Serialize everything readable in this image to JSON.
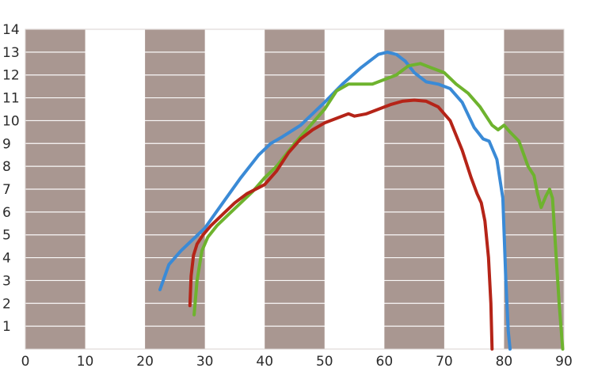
{
  "chart_data": {
    "type": "line",
    "title": "",
    "xlabel": "",
    "ylabel": "",
    "xlim": [
      0,
      90
    ],
    "ylim": [
      0,
      14
    ],
    "xticks": [
      0,
      10,
      20,
      30,
      40,
      50,
      60,
      70,
      80,
      90
    ],
    "yticks": [
      1,
      2,
      3,
      4,
      5,
      6,
      7,
      8,
      9,
      10,
      11,
      12,
      13,
      14
    ],
    "grid": true,
    "legend": "none",
    "band_color": "#a99791",
    "shaded_x_ranges": [
      [
        0,
        10
      ],
      [
        20,
        30
      ],
      [
        40,
        50
      ],
      [
        60,
        70
      ],
      [
        80,
        90
      ]
    ],
    "series": [
      {
        "color": "#3a8ad6",
        "x": [
          22.5,
          24,
          26,
          28,
          30,
          33,
          36,
          39,
          41,
          43,
          46,
          50,
          53,
          56,
          59,
          60.5,
          62,
          63.5,
          65,
          67,
          69,
          71,
          73,
          75,
          76.5,
          77.5,
          78.8,
          79.8,
          80.3,
          80.7,
          81
        ],
        "y": [
          2.6,
          3.7,
          4.3,
          4.8,
          5.3,
          6.4,
          7.5,
          8.5,
          9.0,
          9.3,
          9.8,
          10.8,
          11.6,
          12.3,
          12.9,
          13.0,
          12.9,
          12.6,
          12.1,
          11.7,
          11.6,
          11.4,
          10.8,
          9.7,
          9.2,
          9.1,
          8.3,
          6.6,
          3.0,
          0.8,
          0.0
        ]
      },
      {
        "color": "#6eb32e",
        "x": [
          28.2,
          28.7,
          29.5,
          30.5,
          32,
          34,
          36,
          38,
          40,
          42,
          45,
          48,
          50,
          52,
          54,
          56,
          58,
          60,
          62,
          64,
          66,
          68,
          70,
          72,
          74,
          76,
          78,
          79,
          80,
          81,
          82.5,
          84,
          85,
          85.6,
          86.2,
          87,
          87.6,
          88.1,
          88.6,
          89.2,
          89.8
        ],
        "y": [
          1.5,
          3.0,
          4.3,
          4.9,
          5.4,
          5.9,
          6.4,
          6.9,
          7.5,
          8.0,
          9.0,
          9.9,
          10.5,
          11.3,
          11.6,
          11.6,
          11.6,
          11.8,
          12.0,
          12.4,
          12.5,
          12.3,
          12.1,
          11.6,
          11.2,
          10.6,
          9.8,
          9.6,
          9.8,
          9.5,
          9.1,
          8.0,
          7.6,
          6.8,
          6.2,
          6.7,
          7.0,
          6.6,
          4.5,
          2.0,
          0.0
        ]
      },
      {
        "color": "#b52418",
        "x": [
          27.5,
          27.7,
          28.1,
          28.7,
          29.7,
          31,
          33,
          35,
          37,
          40,
          42,
          44,
          46,
          48,
          50,
          52,
          54,
          55,
          57,
          59,
          61,
          63,
          65,
          67,
          69,
          71,
          73,
          74.5,
          75.5,
          76.2,
          76.8,
          77.4,
          77.8,
          78
        ],
        "y": [
          1.9,
          3.2,
          4.1,
          4.6,
          5.0,
          5.4,
          5.9,
          6.4,
          6.8,
          7.2,
          7.8,
          8.6,
          9.2,
          9.6,
          9.9,
          10.1,
          10.3,
          10.2,
          10.3,
          10.5,
          10.7,
          10.85,
          10.9,
          10.85,
          10.6,
          10.0,
          8.7,
          7.5,
          6.8,
          6.4,
          5.6,
          4.0,
          2.0,
          0.0
        ]
      }
    ]
  }
}
